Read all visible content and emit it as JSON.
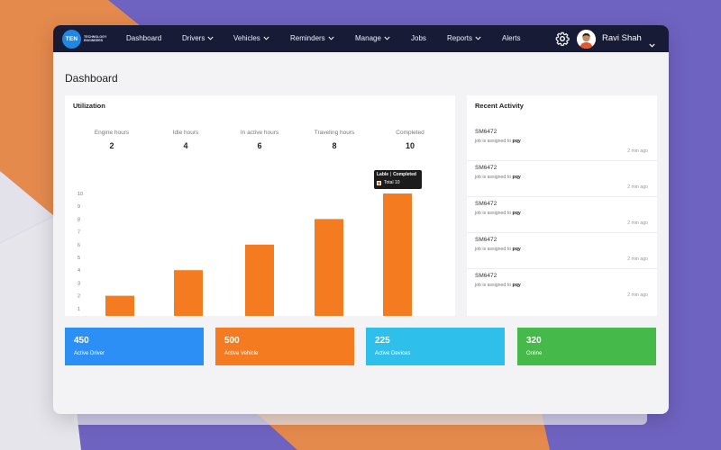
{
  "colors": {
    "nav_bg": "#171b36",
    "accent_orange": "#f47b20",
    "card_blue": "#2b8ff5",
    "card_orange": "#f47b20",
    "card_cyan": "#2ec0ea",
    "card_green": "#45b949",
    "bg_purple": "#6f63c1"
  },
  "brand": {
    "logo_letters": "TEN",
    "logo_subtext": "TECHNOLOGY ENGINEERS"
  },
  "nav": {
    "items": [
      {
        "label": "Dashboard",
        "dropdown": false
      },
      {
        "label": "Drivers",
        "dropdown": true
      },
      {
        "label": "Vehicles",
        "dropdown": true
      },
      {
        "label": "Reminders",
        "dropdown": true
      },
      {
        "label": "Manage",
        "dropdown": true
      },
      {
        "label": "Jobs",
        "dropdown": false
      },
      {
        "label": "Reports",
        "dropdown": true
      },
      {
        "label": "Alerts",
        "dropdown": false
      }
    ],
    "settings_icon": "gear-icon",
    "user_name": "Ravi Shah"
  },
  "page": {
    "title": "Dashboard"
  },
  "utilization": {
    "title": "Utilization",
    "stats": [
      {
        "label": "Engine hours",
        "value": "2"
      },
      {
        "label": "Idle hours",
        "value": "4"
      },
      {
        "label": "In active hours",
        "value": "6"
      },
      {
        "label": "Traveling hours",
        "value": "8"
      },
      {
        "label": "Completed",
        "value": "10"
      }
    ],
    "tooltip": {
      "label_key": "Lable",
      "label_value": "Completed",
      "series_name": "Total",
      "series_value": "10"
    }
  },
  "chart_data": {
    "type": "bar",
    "categories": [
      "Engine hours",
      "Idle hours",
      "In active hours",
      "Traveling hours",
      "Completed"
    ],
    "values": [
      2,
      4,
      6,
      8,
      10
    ],
    "ylim": [
      0,
      10
    ],
    "yticks": [
      0,
      1,
      2,
      3,
      4,
      5,
      6,
      7,
      8,
      9,
      10
    ],
    "color": "#f47b20",
    "grid": false,
    "xlabel": "",
    "ylabel": ""
  },
  "activity": {
    "title": "Recent Activity",
    "items": [
      {
        "id": "SM6472",
        "desc": "job is assigned to",
        "who": "pqy",
        "time": "2 min ago"
      },
      {
        "id": "SM6472",
        "desc": "job is assigned to",
        "who": "pqy",
        "time": "2 min ago"
      },
      {
        "id": "SM6472",
        "desc": "job is assigned to",
        "who": "pqy",
        "time": "2 min ago"
      },
      {
        "id": "SM6472",
        "desc": "job is assigned to",
        "who": "pqy",
        "time": "2 min ago"
      },
      {
        "id": "SM6472",
        "desc": "job is assigned to",
        "who": "pqy",
        "time": "2 min ago"
      }
    ]
  },
  "cards": [
    {
      "value": "450",
      "label": "Active Driver",
      "color": "#2b8ff5"
    },
    {
      "value": "500",
      "label": "Active Vehicle",
      "color": "#f47b20"
    },
    {
      "value": "225",
      "label": "Active Devices",
      "color": "#2ec0ea"
    },
    {
      "value": "320",
      "label": "Online",
      "color": "#45b949"
    }
  ]
}
